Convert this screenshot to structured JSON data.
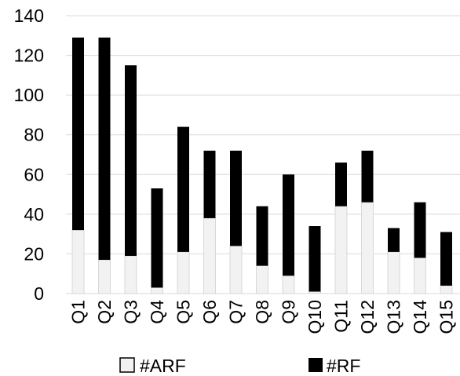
{
  "chart_data": {
    "type": "bar",
    "stacked": true,
    "categories": [
      "Q1",
      "Q2",
      "Q3",
      "Q4",
      "Q5",
      "Q6",
      "Q7",
      "Q8",
      "Q9",
      "Q10",
      "Q11",
      "Q12",
      "Q13",
      "Q14",
      "Q15"
    ],
    "series": [
      {
        "name": "#ARF",
        "color": "#f2f2f2",
        "values": [
          32,
          17,
          19,
          3,
          21,
          38,
          24,
          14,
          9,
          1,
          44,
          46,
          21,
          18,
          4
        ]
      },
      {
        "name": "#RF",
        "color": "#000000",
        "values": [
          97,
          112,
          96,
          50,
          63,
          34,
          48,
          30,
          51,
          33,
          22,
          26,
          12,
          28,
          27
        ]
      }
    ],
    "title": "",
    "xlabel": "",
    "ylabel": "",
    "ylim": [
      0,
      140
    ],
    "yticks": [
      0,
      20,
      40,
      60,
      80,
      100,
      120,
      140
    ],
    "grid": true,
    "legend": "bottom"
  }
}
